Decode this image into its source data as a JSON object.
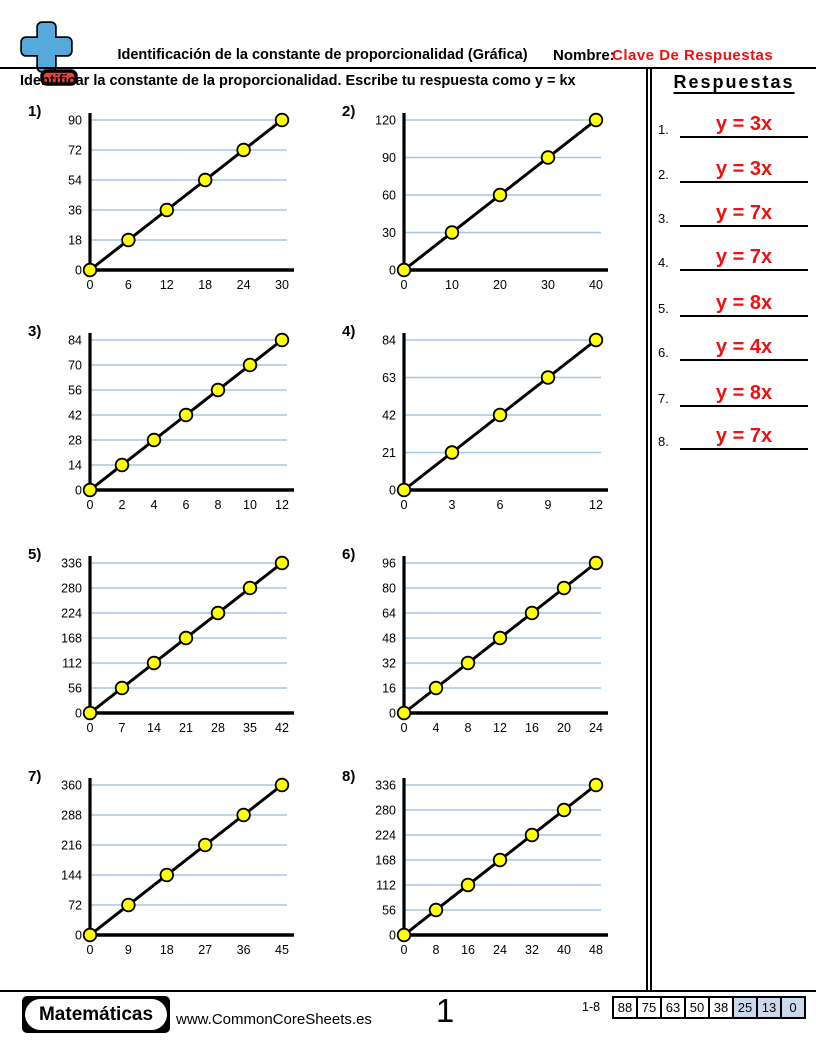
{
  "colors": {
    "accent_red": "#ee1111",
    "grid_blue": "#a5c5e5",
    "point_fill": "#ffff00",
    "point_stroke": "#000000",
    "axis_black": "#000000",
    "score_highlight": "#ccd9ed",
    "logo_blue": "#56aadb",
    "logo_red": "#e8413c"
  },
  "header": {
    "title": "Identificación de la constante de proporcionalidad (Gráfica)",
    "name_label": "Nombre:",
    "name_value": "Clave De Respuestas",
    "logo_icon": "plus-minus-logo"
  },
  "instruction": "Identificar la constante de la proporcionalidad. Escribe tu respuesta como y = kx",
  "answers": {
    "title": "Respuestas",
    "items": [
      {
        "num": "1.",
        "text": "y = 3x"
      },
      {
        "num": "2.",
        "text": "y = 3x"
      },
      {
        "num": "3.",
        "text": "y = 7x"
      },
      {
        "num": "4.",
        "text": "y = 7x"
      },
      {
        "num": "5.",
        "text": "y = 8x"
      },
      {
        "num": "6.",
        "text": "y = 4x"
      },
      {
        "num": "7.",
        "text": "y = 8x"
      },
      {
        "num": "8.",
        "text": "y = 7x"
      }
    ]
  },
  "chart_data": [
    {
      "type": "line",
      "label": "1)",
      "k": 3,
      "x_ticks": [
        0,
        6,
        12,
        18,
        24,
        30
      ],
      "y_ticks": [
        0,
        18,
        36,
        54,
        72,
        90
      ],
      "xlim": [
        0,
        30
      ],
      "ylim": [
        0,
        90
      ],
      "grid": "horizontal",
      "legend": false,
      "points": [
        [
          0,
          0
        ],
        [
          6,
          18
        ],
        [
          12,
          36
        ],
        [
          18,
          54
        ],
        [
          24,
          72
        ],
        [
          30,
          90
        ]
      ]
    },
    {
      "type": "line",
      "label": "2)",
      "k": 3,
      "x_ticks": [
        0,
        10,
        20,
        30,
        40
      ],
      "y_ticks": [
        0,
        30,
        60,
        90,
        120
      ],
      "xlim": [
        0,
        40
      ],
      "ylim": [
        0,
        120
      ],
      "grid": "horizontal",
      "legend": false,
      "points": [
        [
          0,
          0
        ],
        [
          10,
          30
        ],
        [
          20,
          60
        ],
        [
          30,
          90
        ],
        [
          40,
          120
        ]
      ]
    },
    {
      "type": "line",
      "label": "3)",
      "k": 7,
      "x_ticks": [
        0,
        2,
        4,
        6,
        8,
        10,
        12
      ],
      "y_ticks": [
        0,
        14,
        28,
        42,
        56,
        70,
        84
      ],
      "xlim": [
        0,
        12
      ],
      "ylim": [
        0,
        84
      ],
      "grid": "horizontal",
      "legend": false,
      "points": [
        [
          0,
          0
        ],
        [
          2,
          14
        ],
        [
          4,
          28
        ],
        [
          6,
          42
        ],
        [
          8,
          56
        ],
        [
          10,
          70
        ],
        [
          12,
          84
        ]
      ]
    },
    {
      "type": "line",
      "label": "4)",
      "k": 7,
      "x_ticks": [
        0,
        3,
        6,
        9,
        12
      ],
      "y_ticks": [
        0,
        21,
        42,
        63,
        84
      ],
      "xlim": [
        0,
        12
      ],
      "ylim": [
        0,
        84
      ],
      "grid": "horizontal",
      "legend": false,
      "points": [
        [
          0,
          0
        ],
        [
          3,
          21
        ],
        [
          6,
          42
        ],
        [
          9,
          63
        ],
        [
          12,
          84
        ]
      ]
    },
    {
      "type": "line",
      "label": "5)",
      "k": 8,
      "x_ticks": [
        0,
        7,
        14,
        21,
        28,
        35,
        42
      ],
      "y_ticks": [
        0,
        56,
        112,
        168,
        224,
        280,
        336
      ],
      "xlim": [
        0,
        42
      ],
      "ylim": [
        0,
        336
      ],
      "grid": "horizontal",
      "legend": false,
      "points": [
        [
          0,
          0
        ],
        [
          7,
          56
        ],
        [
          14,
          112
        ],
        [
          21,
          168
        ],
        [
          28,
          224
        ],
        [
          35,
          280
        ],
        [
          42,
          336
        ]
      ]
    },
    {
      "type": "line",
      "label": "6)",
      "k": 4,
      "x_ticks": [
        0,
        4,
        8,
        12,
        16,
        20,
        24
      ],
      "y_ticks": [
        0,
        16,
        32,
        48,
        64,
        80,
        96
      ],
      "xlim": [
        0,
        24
      ],
      "ylim": [
        0,
        96
      ],
      "grid": "horizontal",
      "legend": false,
      "points": [
        [
          0,
          0
        ],
        [
          4,
          16
        ],
        [
          8,
          32
        ],
        [
          12,
          48
        ],
        [
          16,
          64
        ],
        [
          20,
          80
        ],
        [
          24,
          96
        ]
      ]
    },
    {
      "type": "line",
      "label": "7)",
      "k": 8,
      "x_ticks": [
        0,
        9,
        18,
        27,
        36,
        45
      ],
      "y_ticks": [
        0,
        72,
        144,
        216,
        288,
        360
      ],
      "xlim": [
        0,
        45
      ],
      "ylim": [
        0,
        360
      ],
      "grid": "horizontal",
      "legend": false,
      "points": [
        [
          0,
          0
        ],
        [
          9,
          72
        ],
        [
          18,
          144
        ],
        [
          27,
          216
        ],
        [
          36,
          288
        ],
        [
          45,
          360
        ]
      ]
    },
    {
      "type": "line",
      "label": "8)",
      "k": 7,
      "x_ticks": [
        0,
        8,
        16,
        24,
        32,
        40,
        48
      ],
      "y_ticks": [
        0,
        56,
        112,
        168,
        224,
        280,
        336
      ],
      "xlim": [
        0,
        48
      ],
      "ylim": [
        0,
        336
      ],
      "grid": "horizontal",
      "legend": false,
      "points": [
        [
          0,
          0
        ],
        [
          8,
          56
        ],
        [
          16,
          112
        ],
        [
          24,
          168
        ],
        [
          32,
          224
        ],
        [
          40,
          280
        ],
        [
          48,
          336
        ]
      ]
    }
  ],
  "footer": {
    "brand": "Matemáticas",
    "site": "www.CommonCoreSheets.es",
    "page_number": "1",
    "score_label": "1-8",
    "score_values": [
      "88",
      "75",
      "63",
      "50",
      "38",
      "25",
      "13",
      "0"
    ],
    "score_highlight_start": 5
  }
}
